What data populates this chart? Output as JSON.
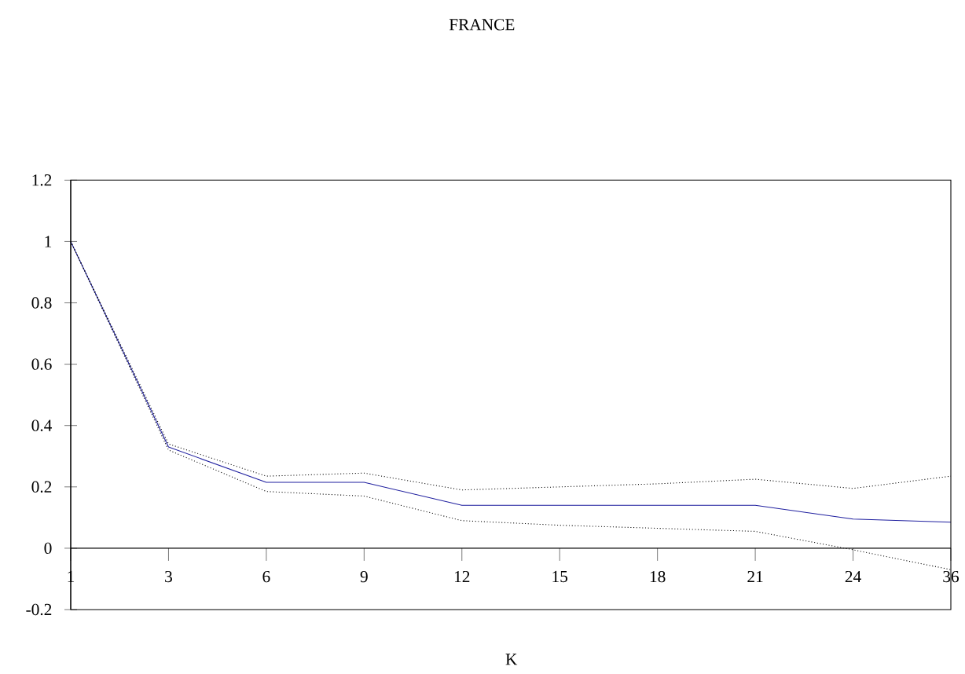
{
  "chart_data": {
    "type": "line",
    "title": "FRANCE",
    "xlabel": "K",
    "categories": [
      "1",
      "3",
      "6",
      "9",
      "12",
      "15",
      "18",
      "21",
      "24",
      "36"
    ],
    "series": [
      {
        "color": "#1f1f9f",
        "line_style": "solid",
        "values": [
          1,
          0.33,
          0.215,
          0.215,
          0.14,
          0.14,
          0.14,
          0.14,
          0.095,
          0.085
        ]
      },
      {
        "color": "#000000",
        "line_style": "dotted",
        "values": [
          1,
          0.34,
          0.235,
          0.245,
          0.19,
          0.2,
          0.21,
          0.225,
          0.195,
          0.235
        ]
      },
      {
        "color": "#000000",
        "line_style": "dotted",
        "values": [
          1,
          0.32,
          0.185,
          0.17,
          0.09,
          0.075,
          0.065,
          0.055,
          -0.005,
          -0.07
        ]
      }
    ],
    "ylim": [
      -0.2,
      1.2
    ],
    "yticks": [
      -0.2,
      0,
      0.2,
      0.4,
      0.6,
      0.8,
      1,
      1.2
    ],
    "grid": false,
    "marker": "none"
  }
}
